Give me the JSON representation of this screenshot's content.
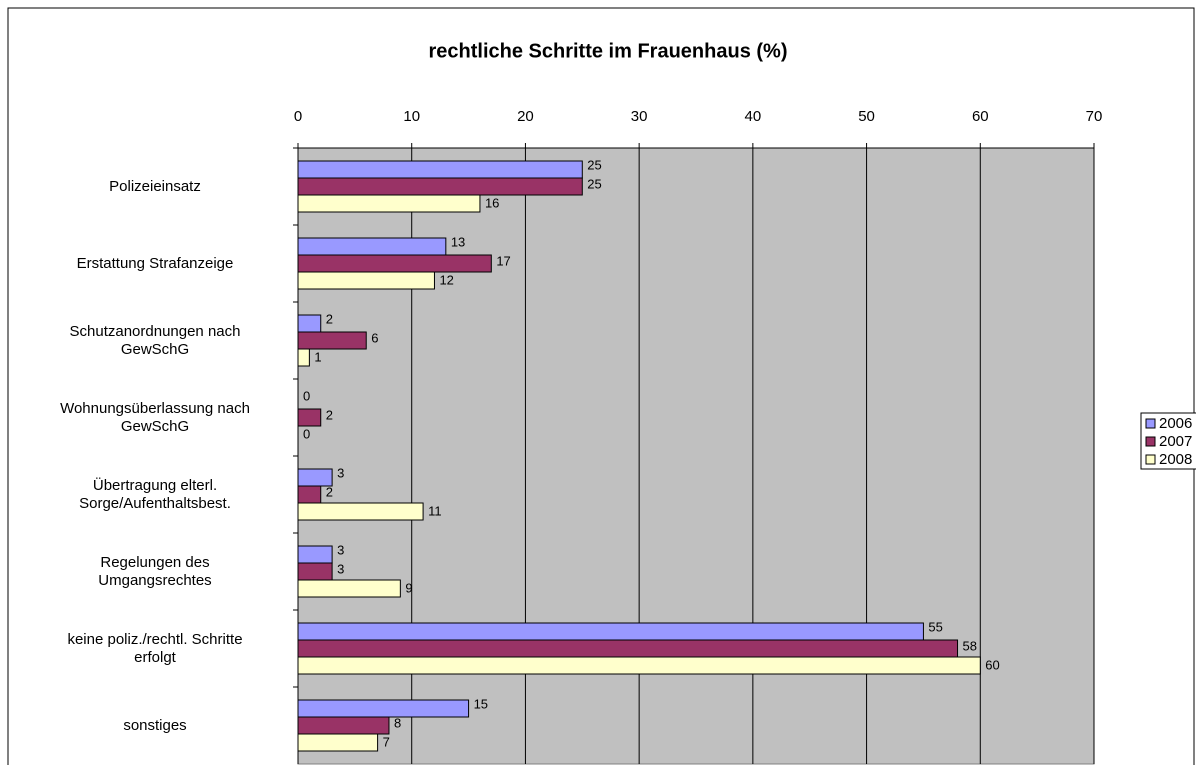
{
  "chart_data": {
    "type": "bar",
    "orientation": "horizontal",
    "title": "rechtliche Schritte im Frauenhaus (%)",
    "categories": [
      "Polizeieinsatz",
      "Erstattung Strafanzeige",
      "Schutzanordnungen nach\nGewSchG",
      "Wohnungsüberlassung nach\nGewSchG",
      "Übertragung elterl.\nSorge/Aufenthaltsbest.",
      "Regelungen des\nUmgangsrechtes",
      "keine poliz./rechtl. Schritte\nerfolgt",
      "sonstiges"
    ],
    "series": [
      {
        "name": "2006",
        "color": "#9999ff",
        "values": [
          25,
          13,
          2,
          0,
          3,
          3,
          55,
          15
        ]
      },
      {
        "name": "2007",
        "color": "#993366",
        "values": [
          25,
          17,
          6,
          2,
          2,
          3,
          58,
          8
        ]
      },
      {
        "name": "2008",
        "color": "#ffffcc",
        "values": [
          16,
          12,
          1,
          0,
          11,
          9,
          60,
          7
        ]
      }
    ],
    "xlim": [
      0,
      70
    ],
    "xticks": [
      0,
      10,
      20,
      30,
      40,
      50,
      60,
      70
    ],
    "grid": true,
    "legend": "right"
  }
}
